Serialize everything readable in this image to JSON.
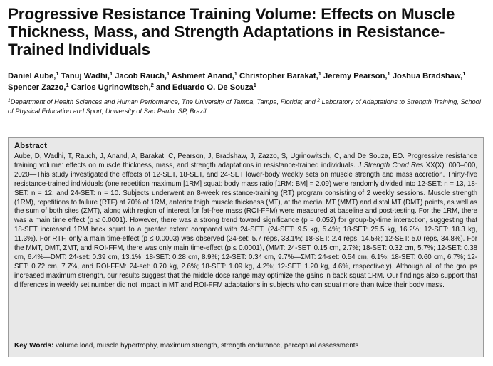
{
  "paper": {
    "title": "Progressive Resistance Training Volume: Effects on Muscle Thickness, Mass, and Strength Adaptations in Resistance-Trained Individuals",
    "authors": [
      {
        "name": "Daniel Aube,",
        "sup": "1"
      },
      {
        "name": "Tanuj Wadhi,",
        "sup": "1"
      },
      {
        "name": "Jacob Rauch,",
        "sup": "1"
      },
      {
        "name": "Ashmeet Anand,",
        "sup": "1"
      },
      {
        "name": "Christopher Barakat,",
        "sup": "1"
      },
      {
        "name": "Jeremy Pearson,",
        "sup": "1"
      },
      {
        "name": "Joshua Bradshaw,",
        "sup": "1"
      },
      {
        "name": "Spencer Zazzo,",
        "sup": "1"
      },
      {
        "name": "Carlos Ugrinowitsch,",
        "sup": "2"
      },
      {
        "name": "and Eduardo O. De Souza",
        "sup": "1"
      }
    ],
    "affiliations": {
      "sup1": "1",
      "text1": "Department of Health Sciences and Human Performance, The University of Tampa, Tampa, Florida; and ",
      "sup2": "2",
      "text2": " Laboratory of Adaptations to Strength Training, School of Physical Education and Sport, University of Sao Paulo, SP, Brazil"
    },
    "abstract": {
      "heading": "Abstract",
      "citation_pre": "Aube, D, Wadhi, T, Rauch, J, Anand, A, Barakat, C, Pearson, J, Bradshaw, J, Zazzo, S, Ugrinowitsch, C, and De Souza, EO. Progressive resistance training volume: effects on muscle thickness, mass, and strength adaptations in resistance-trained individuals.",
      "journal": "J Strength Cond Res",
      "citation_post": " XX(X): 000–000, 2020—",
      "body": "This study investigated the effects of 12-SET, 18-SET, and 24-SET lower-body weekly sets on muscle strength and mass accretion. Thirty-five resistance-trained individuals (one repetition maximum [1RM] squat: body mass ratio [1RM: BM] = 2.09) were randomly divided into 12-SET: n = 13, 18-SET: n = 12, and 24-SET: n = 10. Subjects underwent an 8-week resistance-training (RT) program consisting of 2 weekly sessions. Muscle strength (1RM), repetitions to failure (RTF) at 70% of 1RM, anterior thigh muscle thickness (MT), at the medial MT (MMT) and distal MT (DMT) points, as well as the sum of both sites (ΣMT), along with region of interest for fat-free mass (ROI-FFM) were measured at baseline and post-testing. For the 1RM, there was a main time effect (p ≤ 0.0001). However, there was a strong trend toward significance (p = 0.052) for group-by-time interaction, suggesting that 18-SET increased 1RM back squat to a greater extent compared with 24-SET, (24-SET: 9.5 kg, 5.4%; 18-SET: 25.5 kg, 16.2%; 12-SET: 18.3 kg, 11.3%). For RTF, only a main time-effect (p ≤ 0.0003) was observed (24-set: 5.7 reps, 33.1%; 18-SET: 2.4 reps, 14.5%; 12-SET: 5.0 reps, 34.8%). For the MMT, DMT, ΣMT, and ROI-FFM, there was only main time-effect (p ≤ 0.0001), (MMT: 24-SET: 0.15 cm, 2.7%; 18-SET: 0.32 cm, 5.7%; 12-SET: 0.38 cm, 6.4%—DMT: 24-set: 0.39 cm, 13.1%; 18-SET: 0.28 cm, 8.9%; 12-SET: 0.34 cm, 9.7%—ΣMT: 24-set: 0.54 cm, 6.1%; 18-SET: 0.60 cm, 6.7%; 12-SET: 0.72 cm, 7.7%, and ROI-FFM: 24-set: 0.70 kg, 2.6%; 18-SET: 1.09 kg, 4.2%; 12-SET: 1.20 kg, 4.6%, respectively). Although all of the groups increased maximum strength, our results suggest that the middle dose range may optimize the gains in back squat 1RM. Our findings also support that differences in weekly set number did not impact in MT and ROI-FFM adaptations in subjects who can squat more than twice their body mass.",
      "keywords_label": "Key Words:",
      "keywords": " volume load, muscle hypertrophy, maximum strength, strength endurance, perceptual assessments"
    }
  }
}
